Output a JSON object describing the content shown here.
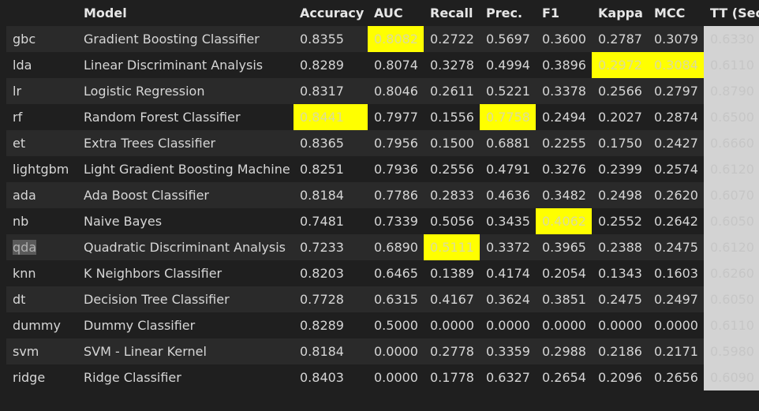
{
  "columns": [
    {
      "key": "index",
      "label": ""
    },
    {
      "key": "model",
      "label": "Model"
    },
    {
      "key": "accuracy",
      "label": "Accuracy"
    },
    {
      "key": "auc",
      "label": "AUC"
    },
    {
      "key": "recall",
      "label": "Recall"
    },
    {
      "key": "prec",
      "label": "Prec."
    },
    {
      "key": "f1",
      "label": "F1"
    },
    {
      "key": "kappa",
      "label": "Kappa"
    },
    {
      "key": "mcc",
      "label": "MCC"
    },
    {
      "key": "tt",
      "label": "TT (Sec)"
    }
  ],
  "rows": [
    {
      "id": "gbc",
      "model": "Gradient Boosting Classifier",
      "accuracy": "0.8355",
      "auc": "0.8082",
      "recall": "0.2722",
      "prec": "0.5697",
      "f1": "0.3600",
      "kappa": "0.2787",
      "mcc": "0.3079",
      "tt": "0.6330",
      "highlight": [
        "auc"
      ]
    },
    {
      "id": "lda",
      "model": "Linear Discriminant Analysis",
      "accuracy": "0.8289",
      "auc": "0.8074",
      "recall": "0.3278",
      "prec": "0.4994",
      "f1": "0.3896",
      "kappa": "0.2972",
      "mcc": "0.3084",
      "tt": "0.6110",
      "highlight": [
        "kappa",
        "mcc"
      ]
    },
    {
      "id": "lr",
      "model": "Logistic Regression",
      "accuracy": "0.8317",
      "auc": "0.8046",
      "recall": "0.2611",
      "prec": "0.5221",
      "f1": "0.3378",
      "kappa": "0.2566",
      "mcc": "0.2797",
      "tt": "0.8790",
      "highlight": []
    },
    {
      "id": "rf",
      "model": "Random Forest Classifier",
      "accuracy": "0.8441",
      "auc": "0.7977",
      "recall": "0.1556",
      "prec": "0.7758",
      "f1": "0.2494",
      "kappa": "0.2027",
      "mcc": "0.2874",
      "tt": "0.6500",
      "highlight": [
        "accuracy",
        "prec"
      ]
    },
    {
      "id": "et",
      "model": "Extra Trees Classifier",
      "accuracy": "0.8365",
      "auc": "0.7956",
      "recall": "0.1500",
      "prec": "0.6881",
      "f1": "0.2255",
      "kappa": "0.1750",
      "mcc": "0.2427",
      "tt": "0.6660",
      "highlight": []
    },
    {
      "id": "lightgbm",
      "model": "Light Gradient Boosting Machine",
      "accuracy": "0.8251",
      "auc": "0.7936",
      "recall": "0.2556",
      "prec": "0.4791",
      "f1": "0.3276",
      "kappa": "0.2399",
      "mcc": "0.2574",
      "tt": "0.6120",
      "highlight": []
    },
    {
      "id": "ada",
      "model": "Ada Boost Classifier",
      "accuracy": "0.8184",
      "auc": "0.7786",
      "recall": "0.2833",
      "prec": "0.4636",
      "f1": "0.3482",
      "kappa": "0.2498",
      "mcc": "0.2620",
      "tt": "0.6070",
      "highlight": []
    },
    {
      "id": "nb",
      "model": "Naive Bayes",
      "accuracy": "0.7481",
      "auc": "0.7339",
      "recall": "0.5056",
      "prec": "0.3435",
      "f1": "0.4062",
      "kappa": "0.2552",
      "mcc": "0.2642",
      "tt": "0.6050",
      "highlight": [
        "f1"
      ]
    },
    {
      "id": "qda",
      "model": "Quadratic Discriminant Analysis",
      "accuracy": "0.7233",
      "auc": "0.6890",
      "recall": "0.5111",
      "prec": "0.3372",
      "f1": "0.3965",
      "kappa": "0.2388",
      "mcc": "0.2475",
      "tt": "0.6120",
      "highlight": [
        "recall"
      ],
      "selected_id": true
    },
    {
      "id": "knn",
      "model": "K Neighbors Classifier",
      "accuracy": "0.8203",
      "auc": "0.6465",
      "recall": "0.1389",
      "prec": "0.4174",
      "f1": "0.2054",
      "kappa": "0.1343",
      "mcc": "0.1603",
      "tt": "0.6260",
      "highlight": []
    },
    {
      "id": "dt",
      "model": "Decision Tree Classifier",
      "accuracy": "0.7728",
      "auc": "0.6315",
      "recall": "0.4167",
      "prec": "0.3624",
      "f1": "0.3851",
      "kappa": "0.2475",
      "mcc": "0.2497",
      "tt": "0.6050",
      "highlight": []
    },
    {
      "id": "dummy",
      "model": "Dummy Classifier",
      "accuracy": "0.8289",
      "auc": "0.5000",
      "recall": "0.0000",
      "prec": "0.0000",
      "f1": "0.0000",
      "kappa": "0.0000",
      "mcc": "0.0000",
      "tt": "0.6110",
      "highlight": []
    },
    {
      "id": "svm",
      "model": "SVM - Linear Kernel",
      "accuracy": "0.8184",
      "auc": "0.0000",
      "recall": "0.2778",
      "prec": "0.3359",
      "f1": "0.2988",
      "kappa": "0.2186",
      "mcc": "0.2171",
      "tt": "0.5980",
      "highlight": []
    },
    {
      "id": "ridge",
      "model": "Ridge Classifier",
      "accuracy": "0.8403",
      "auc": "0.0000",
      "recall": "0.1778",
      "prec": "0.6327",
      "f1": "0.2654",
      "kappa": "0.2096",
      "mcc": "0.2656",
      "tt": "0.6090",
      "highlight": []
    }
  ],
  "colors": {
    "background": "#1f1f1f",
    "row_alt": "#2a2a2a",
    "highlight_best": "#ffff00",
    "tt_column_bg": "#d3d3d3"
  }
}
